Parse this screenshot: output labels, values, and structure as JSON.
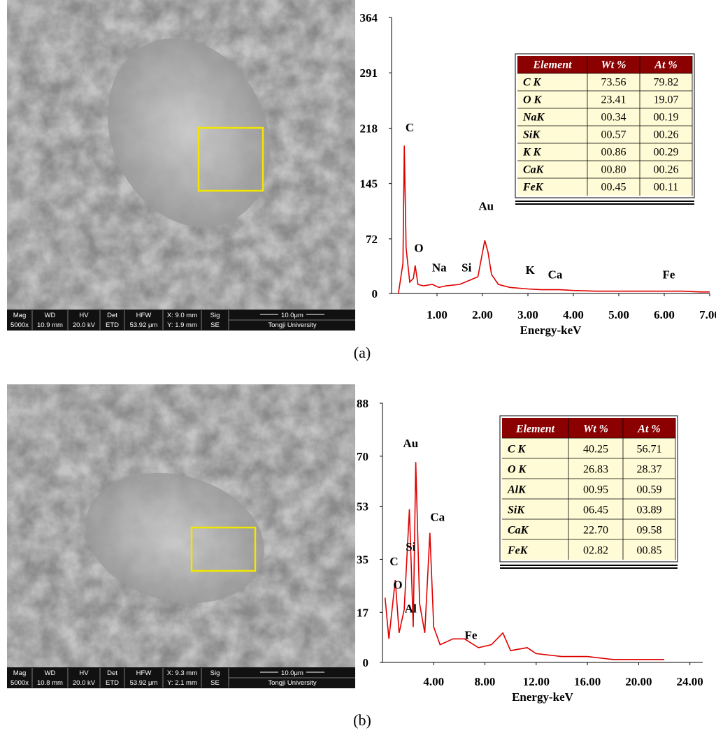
{
  "chart_data": [
    {
      "type": "line",
      "x_label": "Energy-keV",
      "color": "#e00000",
      "xlim": [
        0,
        7
      ],
      "xticks": [
        {
          "value": 1,
          "label": "1.00"
        },
        {
          "value": 2,
          "label": "2.00"
        },
        {
          "value": 3,
          "label": "3.00"
        },
        {
          "value": 4,
          "label": "4.00"
        },
        {
          "value": 5,
          "label": "5.00"
        },
        {
          "value": 6,
          "label": "6.00"
        },
        {
          "value": 7,
          "label": "7.00"
        }
      ],
      "ylim": [
        0,
        364
      ],
      "yticks": [
        0,
        72,
        145,
        218,
        291,
        364
      ],
      "x": [
        0.15,
        0.25,
        0.28,
        0.32,
        0.4,
        0.48,
        0.52,
        0.58,
        0.7,
        0.9,
        1.04,
        1.2,
        1.5,
        1.74,
        1.9,
        2.05,
        2.12,
        2.2,
        2.35,
        2.6,
        3.0,
        3.3,
        3.7,
        4.0,
        4.5,
        5.0,
        5.5,
        6.0,
        6.4,
        6.8,
        7.0
      ],
      "values": [
        0,
        40,
        195,
        60,
        15,
        20,
        37,
        12,
        10,
        12,
        8,
        10,
        12,
        18,
        22,
        70,
        55,
        25,
        12,
        8,
        6,
        5,
        5,
        4,
        3,
        3,
        3,
        3,
        3,
        2,
        2
      ],
      "annotations": [
        {
          "text": "C",
          "x": 0.4,
          "y": 214
        },
        {
          "text": "O",
          "x": 0.6,
          "y": 55
        },
        {
          "text": "Na",
          "x": 1.05,
          "y": 29
        },
        {
          "text": "Si",
          "x": 1.65,
          "y": 29
        },
        {
          "text": "Au",
          "x": 2.08,
          "y": 110
        },
        {
          "text": "K",
          "x": 3.05,
          "y": 26
        },
        {
          "text": "Ca",
          "x": 3.6,
          "y": 20
        },
        {
          "text": "Fe",
          "x": 6.1,
          "y": 20
        }
      ],
      "table": {
        "columns": [
          "Element",
          "Wt %",
          "At %"
        ],
        "rows": [
          [
            "C K",
            "73.56",
            "79.82"
          ],
          [
            "O K",
            "23.41",
            "19.07"
          ],
          [
            "NaK",
            "00.34",
            "00.19"
          ],
          [
            "SiK",
            "00.57",
            "00.26"
          ],
          [
            "K K",
            "00.86",
            "00.29"
          ],
          [
            "CaK",
            "00.80",
            "00.26"
          ],
          [
            "FeK",
            "00.45",
            "00.11"
          ]
        ]
      },
      "caption": "(a)"
    },
    {
      "type": "line",
      "x_label": "Energy-keV",
      "color": "#e00000",
      "xlim": [
        0,
        25
      ],
      "xticks": [
        {
          "value": 4,
          "label": "4.00"
        },
        {
          "value": 8,
          "label": "8.00"
        },
        {
          "value": 12,
          "label": "12.00"
        },
        {
          "value": 16,
          "label": "16.00"
        },
        {
          "value": 20,
          "label": "20.00"
        },
        {
          "value": 24,
          "label": "24.00"
        }
      ],
      "ylim": [
        0,
        88
      ],
      "yticks": [
        0,
        17,
        35,
        53,
        70,
        88
      ],
      "x": [
        0.2,
        0.5,
        1.0,
        1.3,
        1.7,
        1.9,
        2.1,
        2.4,
        2.6,
        2.9,
        3.3,
        3.7,
        4.0,
        4.5,
        5.5,
        6.4,
        7.5,
        8.5,
        9.4,
        10,
        11.3,
        12,
        14,
        16,
        18,
        20,
        22
      ],
      "values": [
        22,
        8,
        28,
        10,
        18,
        35,
        52,
        12,
        68,
        20,
        10,
        44,
        12,
        6,
        8,
        8,
        5,
        6,
        10,
        4,
        5,
        3,
        2,
        2,
        1,
        1,
        1
      ],
      "annotations": [
        {
          "text": "C",
          "x": 0.9,
          "y": 33
        },
        {
          "text": "O",
          "x": 1.2,
          "y": 25
        },
        {
          "text": "Si",
          "x": 2.2,
          "y": 38
        },
        {
          "text": "Au",
          "x": 2.2,
          "y": 73
        },
        {
          "text": "Ca",
          "x": 4.3,
          "y": 48
        },
        {
          "text": "Al",
          "x": 2.2,
          "y": 17
        },
        {
          "text": "Fe",
          "x": 6.9,
          "y": 8
        }
      ],
      "table": {
        "columns": [
          "Element",
          "Wt %",
          "At %"
        ],
        "rows": [
          [
            "C K",
            "40.25",
            "56.71"
          ],
          [
            "O K",
            "26.83",
            "28.37"
          ],
          [
            "AlK",
            "00.95",
            "00.59"
          ],
          [
            "SiK",
            "06.45",
            "03.89"
          ],
          [
            "CaK",
            "22.70",
            "09.58"
          ],
          [
            "FeK",
            "02.82",
            "00.85"
          ]
        ]
      },
      "caption": "(b)"
    }
  ],
  "sem_images": [
    {
      "fields": [
        [
          "Mag",
          "5000x"
        ],
        [
          "WD",
          "10.9 mm"
        ],
        [
          "HV",
          "20.0 kV"
        ],
        [
          "Det",
          "ETD"
        ],
        [
          "HFW",
          "53.92 μm"
        ],
        [
          "X: 9.0 mm",
          "Y: 1.9 mm"
        ],
        [
          "Sig",
          "SE"
        ]
      ],
      "scale": "10.0μm",
      "institution": "Tongji University"
    },
    {
      "fields": [
        [
          "Mag",
          "5000x"
        ],
        [
          "WD",
          "10.8 mm"
        ],
        [
          "HV",
          "20.0 kV"
        ],
        [
          "Det",
          "ETD"
        ],
        [
          "HFW",
          "53.92 μm"
        ],
        [
          "X: 9.3 mm",
          "Y: 2.1 mm"
        ],
        [
          "Sig",
          "SE"
        ]
      ],
      "scale": "10.0μm",
      "institution": "Tongji University"
    }
  ]
}
